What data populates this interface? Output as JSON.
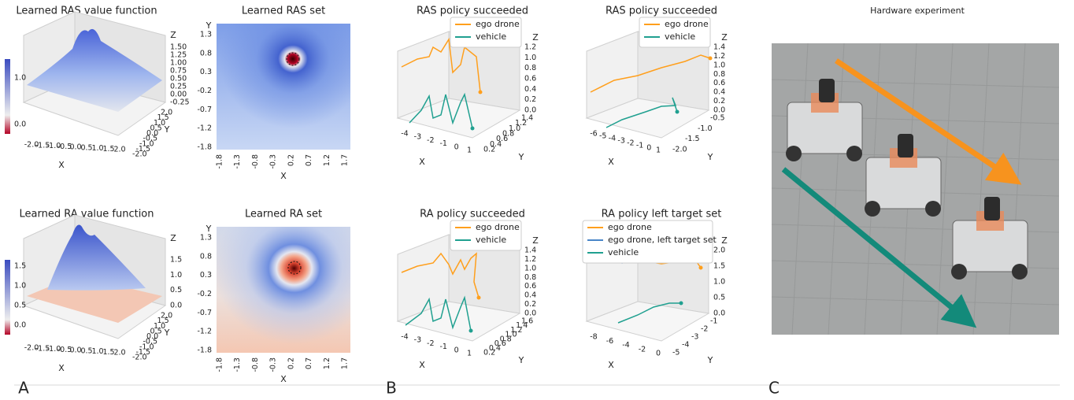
{
  "panels": [
    {
      "title": "Learned RAS value function",
      "colorbar_ticks": [
        "0.0",
        "1.0"
      ],
      "z_label": "Z",
      "z_ticks": [
        "-0.25",
        "0.00",
        "0.25",
        "0.50",
        "0.75",
        "1.00",
        "1.25",
        "1.50"
      ],
      "x_label": "X",
      "x_ticks": [
        "-2.0",
        "-1.5",
        "-1.0",
        "-0.5",
        "0.0",
        "0.5",
        "1.0",
        "1.5",
        "2.0"
      ],
      "y_label": "Y",
      "y_ticks": [
        "-2.0",
        "-1.5",
        "-1.0",
        "-0.5",
        "0.0",
        "0.5",
        "1.0",
        "1.5",
        "2.0"
      ]
    },
    {
      "title": "Learned RAS set",
      "x_label": "X",
      "x_ticks": [
        "-1.8",
        "-1.3",
        "-0.8",
        "-0.3",
        "0.2",
        "0.7",
        "1.2",
        "1.7"
      ],
      "y_label": "Y",
      "y_ticks": [
        "-1.8",
        "-1.2",
        "-0.7",
        "-0.2",
        "0.3",
        "0.8",
        "1.3"
      ]
    },
    {
      "title": "RAS policy succeeded",
      "legend": [
        {
          "label": "ego drone",
          "color": "#ff9f1c"
        },
        {
          "label": "vehicle",
          "color": "#20a090"
        }
      ],
      "z_label": "Z",
      "z_ticks": [
        "0.0",
        "0.2",
        "0.4",
        "0.6",
        "0.8",
        "1.0",
        "1.2"
      ],
      "x_label": "X",
      "x_ticks": [
        "-4",
        "-3",
        "-2",
        "-1",
        "0",
        "1"
      ],
      "y_label": "Y",
      "y_ticks": [
        "0.2",
        "0.4",
        "0.6",
        "0.8",
        "1.0",
        "1.2",
        "1.4"
      ]
    },
    {
      "title": "RAS policy succeeded",
      "legend": [
        {
          "label": "ego drone",
          "color": "#ff9f1c"
        },
        {
          "label": "vehicle",
          "color": "#20a090"
        }
      ],
      "z_label": "Z",
      "z_ticks": [
        "0.0",
        "0.2",
        "0.4",
        "0.6",
        "0.8",
        "1.0",
        "1.2",
        "1.4"
      ],
      "x_label": "X",
      "x_ticks": [
        "-6",
        "-5",
        "-4",
        "-3",
        "-2",
        "-1",
        "0",
        "1"
      ],
      "y_label": "Y",
      "y_ticks": [
        "-2.0",
        "-1.5",
        "-1.0",
        "-0.5"
      ]
    },
    {
      "title": "Learned RA value function",
      "colorbar_ticks": [
        "0.0",
        "0.5",
        "1.0",
        "1.5"
      ],
      "z_label": "Z",
      "z_ticks": [
        "0.0",
        "0.5",
        "1.0",
        "1.5"
      ],
      "x_label": "X",
      "x_ticks": [
        "-2.0",
        "-1.5",
        "-1.0",
        "-0.5",
        "0.0",
        "0.5",
        "1.0",
        "1.5",
        "2.0"
      ],
      "y_label": "Y",
      "y_ticks": [
        "-2.0",
        "-1.5",
        "-1.0",
        "-0.5",
        "0.0",
        "0.5",
        "1.0",
        "1.5",
        "2.0"
      ]
    },
    {
      "title": "Learned RA set",
      "x_label": "X",
      "x_ticks": [
        "-1.8",
        "-1.3",
        "-0.8",
        "-0.3",
        "0.2",
        "0.7",
        "1.2",
        "1.7"
      ],
      "y_label": "Y",
      "y_ticks": [
        "-1.8",
        "-1.2",
        "-0.7",
        "-0.2",
        "0.3",
        "0.8",
        "1.3"
      ]
    },
    {
      "title": "RA policy succeeded",
      "legend": [
        {
          "label": "ego drone",
          "color": "#ff9f1c"
        },
        {
          "label": "vehicle",
          "color": "#20a090"
        }
      ],
      "z_label": "Z",
      "z_ticks": [
        "0.0",
        "0.2",
        "0.4",
        "0.6",
        "0.8",
        "1.0",
        "1.2",
        "1.4"
      ],
      "x_label": "X",
      "x_ticks": [
        "-4",
        "-3",
        "-2",
        "-1",
        "0",
        "1"
      ],
      "y_label": "Y",
      "y_ticks": [
        "0.2",
        "0.4",
        "0.6",
        "0.8",
        "1.0",
        "1.2",
        "1.4",
        "1.6"
      ]
    },
    {
      "title": "RA policy left target set",
      "legend": [
        {
          "label": "ego drone",
          "color": "#ff9f1c"
        },
        {
          "label": "ego drone, left target set",
          "color": "#4a86c8"
        },
        {
          "label": "vehicle",
          "color": "#20a090"
        }
      ],
      "z_label": "Z",
      "z_ticks": [
        "0.0",
        "0.5",
        "1.0",
        "1.5",
        "2.0"
      ],
      "x_label": "X",
      "x_ticks": [
        "-8",
        "-6",
        "-4",
        "-2",
        "0"
      ],
      "y_label": "Y",
      "y_ticks": [
        "-5",
        "-4",
        "-3",
        "-2",
        "-1"
      ]
    },
    {
      "title": "Hardware experiment"
    }
  ],
  "labels": [
    "A",
    "B",
    "C"
  ]
}
